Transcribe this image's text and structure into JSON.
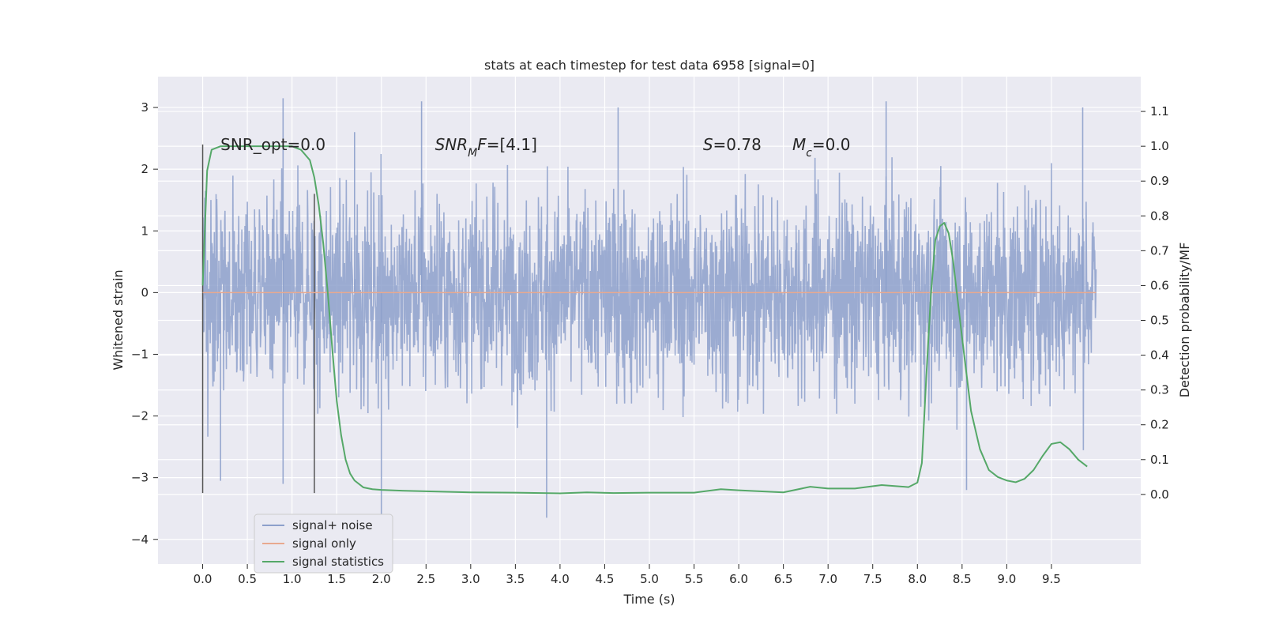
{
  "chart_data": {
    "type": "line",
    "title": "stats at each timestep for test data 6958 [signal=0]",
    "xlabel": "Time (s)",
    "ylabel": "Whitened strain",
    "y2label": "Detection probability/MF",
    "xlim": [
      -0.5,
      10.5
    ],
    "ylim": [
      -4.4,
      3.5
    ],
    "y2lim": [
      -0.2,
      1.2
    ],
    "x_ticks": [
      "0.0",
      "0.5",
      "1.0",
      "1.5",
      "2.0",
      "2.5",
      "3.0",
      "3.5",
      "4.0",
      "4.5",
      "5.0",
      "5.5",
      "6.0",
      "6.5",
      "7.0",
      "7.5",
      "8.0",
      "8.5",
      "9.0",
      "9.5"
    ],
    "x_tick_values": [
      0,
      0.5,
      1,
      1.5,
      2,
      2.5,
      3,
      3.5,
      4,
      4.5,
      5,
      5.5,
      6,
      6.5,
      7,
      7.5,
      8,
      8.5,
      9,
      9.5
    ],
    "y_ticks": [
      "3",
      "2",
      "1",
      "0",
      "−1",
      "−2",
      "−3",
      "−4"
    ],
    "y_tick_values": [
      3,
      2,
      1,
      0,
      -1,
      -2,
      -3,
      -4
    ],
    "y2_ticks": [
      "1.1",
      "1.0",
      "0.9",
      "0.8",
      "0.7",
      "0.6",
      "0.5",
      "0.4",
      "0.3",
      "0.2",
      "0.1",
      "0.0"
    ],
    "y2_tick_values": [
      1.1,
      1.0,
      0.9,
      0.8,
      0.7,
      0.6,
      0.5,
      0.4,
      0.3,
      0.2,
      0.1,
      0.0
    ],
    "grid": true,
    "legend_position": "lower-left",
    "series": [
      {
        "name": "signal+ noise",
        "axis": "left",
        "color": "#8da0cb",
        "kind": "noise",
        "x_range": [
          0,
          10
        ],
        "typical_amplitude": 1.2,
        "peaks": [
          {
            "x": 0.9,
            "y": 3.15
          },
          {
            "x": 1.7,
            "y": 2.6
          },
          {
            "x": 2.45,
            "y": 3.1
          },
          {
            "x": 3.85,
            "y": -3.65
          },
          {
            "x": 2.0,
            "y": -4.0
          },
          {
            "x": 4.65,
            "y": 3.0
          },
          {
            "x": 7.65,
            "y": 3.1
          },
          {
            "x": 8.55,
            "y": -3.2
          },
          {
            "x": 9.85,
            "y": 3.0
          },
          {
            "x": 0.2,
            "y": -3.05
          },
          {
            "x": 0.9,
            "y": -3.1
          }
        ]
      },
      {
        "name": "signal only",
        "axis": "left",
        "color": "#e8a98f",
        "x": [
          0,
          10
        ],
        "y": [
          0,
          0
        ]
      },
      {
        "name": "signal statistics",
        "axis": "right",
        "color": "#55a868",
        "x": [
          0,
          0.05,
          0.1,
          0.15,
          0.2,
          0.3,
          0.4,
          0.5,
          0.6,
          0.7,
          0.8,
          0.9,
          1.0,
          1.1,
          1.2,
          1.25,
          1.3,
          1.35,
          1.4,
          1.45,
          1.5,
          1.55,
          1.6,
          1.65,
          1.7,
          1.8,
          1.9,
          2.0,
          2.2,
          2.5,
          3.0,
          3.5,
          4.0,
          4.3,
          4.6,
          5.0,
          5.5,
          5.8,
          6.0,
          6.5,
          6.8,
          7.0,
          7.3,
          7.6,
          7.9,
          8.0,
          8.05,
          8.1,
          8.15,
          8.2,
          8.25,
          8.3,
          8.35,
          8.4,
          8.5,
          8.6,
          8.7,
          8.8,
          8.9,
          9.0,
          9.1,
          9.2,
          9.3,
          9.4,
          9.5,
          9.6,
          9.7,
          9.8,
          9.9
        ],
        "y": [
          0.6,
          0.93,
          0.99,
          0.995,
          1.0,
          1.0,
          1.0,
          1.0,
          1.0,
          1.0,
          1.0,
          1.0,
          1.0,
          0.99,
          0.96,
          0.91,
          0.83,
          0.72,
          0.58,
          0.42,
          0.27,
          0.17,
          0.1,
          0.06,
          0.04,
          0.02,
          0.015,
          0.013,
          0.011,
          0.009,
          0.006,
          0.005,
          0.003,
          0.006,
          0.004,
          0.005,
          0.005,
          0.015,
          0.012,
          0.006,
          0.022,
          0.017,
          0.017,
          0.027,
          0.021,
          0.034,
          0.09,
          0.34,
          0.57,
          0.73,
          0.77,
          0.78,
          0.75,
          0.67,
          0.45,
          0.24,
          0.13,
          0.07,
          0.05,
          0.04,
          0.035,
          0.045,
          0.07,
          0.11,
          0.145,
          0.15,
          0.13,
          0.1,
          0.08
        ]
      }
    ],
    "vertical_lines": [
      {
        "x": 0.0,
        "y_range": [
          -3.25,
          2.4
        ],
        "color": "#555555"
      },
      {
        "x": 1.25,
        "y_range": [
          -3.25,
          1.6
        ],
        "color": "#555555"
      }
    ],
    "annotations": [
      {
        "parts": [
          {
            "t": "SNR_opt=0.0",
            "i": false
          }
        ],
        "x": 0.2,
        "y": 2.4
      },
      {
        "parts": [
          {
            "t": "SNR",
            "i": true
          },
          {
            "t": "M",
            "i": true,
            "sub": true
          },
          {
            "t": "F",
            "i": true
          },
          {
            "t": "=[4.1]",
            "i": false
          }
        ],
        "x": 2.6,
        "y": 2.4
      },
      {
        "parts": [
          {
            "t": "S",
            "i": true
          },
          {
            "t": "=0.78",
            "i": false
          }
        ],
        "x": 5.6,
        "y": 2.4
      },
      {
        "parts": [
          {
            "t": "M",
            "i": true
          },
          {
            "t": "c",
            "i": true,
            "sub": true
          },
          {
            "t": "=0.0",
            "i": false
          }
        ],
        "x": 6.6,
        "y": 2.4
      }
    ]
  },
  "colors": {
    "plot_background": "#eaeaf2",
    "grid": "#ffffff",
    "text": "#262626"
  }
}
